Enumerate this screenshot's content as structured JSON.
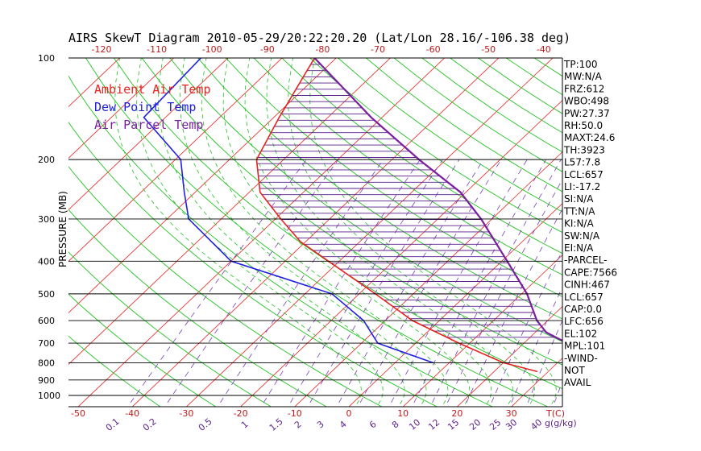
{
  "chart_data": {
    "type": "skewt",
    "title": "AIRS SkewT Diagram 2010-05-29/20:22:20.20 (Lat/Lon 28.16/-106.38 deg)",
    "ylabel": "PRESSURE (MB)",
    "xlabel_right": "T(C)",
    "mixing_ratio_unit": "g(g/kg)",
    "pressure_ticks": [
      100,
      200,
      300,
      400,
      500,
      600,
      700,
      800,
      900,
      1000
    ],
    "bottom_temp_ticks": [
      -50,
      -40,
      -30,
      -20,
      -10,
      0,
      10,
      20,
      30,
      40
    ],
    "top_temp_ticks": [
      -120,
      -110,
      -100,
      -90,
      -80,
      -70,
      -60,
      -50,
      -40
    ],
    "mixing_ratio_labels": [
      "0.1",
      "0.2",
      "0.5",
      "1",
      "1.5",
      "2",
      "3",
      "4",
      "6",
      "8",
      "10",
      "12",
      "15",
      "20",
      "25",
      "30",
      "40"
    ],
    "legend": [
      {
        "label": "Ambient Air Temp",
        "color": "#e8231f"
      },
      {
        "label": "Dew Point Temp",
        "color": "#2020e0"
      },
      {
        "label": "Air Parcel Temp",
        "color": "#7a1fa0"
      }
    ],
    "series": [
      {
        "name": "Ambient Air Temp",
        "color": "#e8231f",
        "points": [
          {
            "p": 100,
            "t": -74
          },
          {
            "p": 150,
            "t": -69
          },
          {
            "p": 200,
            "t": -65
          },
          {
            "p": 250,
            "t": -58
          },
          {
            "p": 300,
            "t": -49
          },
          {
            "p": 350,
            "t": -41
          },
          {
            "p": 400,
            "t": -32
          },
          {
            "p": 500,
            "t": -17
          },
          {
            "p": 600,
            "t": -5
          },
          {
            "p": 700,
            "t": 8
          },
          {
            "p": 800,
            "t": 20
          },
          {
            "p": 850,
            "t": 28
          }
        ]
      },
      {
        "name": "Dew Point Temp",
        "color": "#2020e0",
        "points": [
          {
            "p": 100,
            "t": -95
          },
          {
            "p": 150,
            "t": -94
          },
          {
            "p": 200,
            "t": -79
          },
          {
            "p": 250,
            "t": -72
          },
          {
            "p": 300,
            "t": -66
          },
          {
            "p": 400,
            "t": -50
          },
          {
            "p": 500,
            "t": -25
          },
          {
            "p": 600,
            "t": -14
          },
          {
            "p": 700,
            "t": -7
          },
          {
            "p": 800,
            "t": 7
          }
        ]
      },
      {
        "name": "Air Parcel Temp",
        "color": "#7a1fa0",
        "points": [
          {
            "p": 100,
            "t": -74
          },
          {
            "p": 150,
            "t": -52
          },
          {
            "p": 200,
            "t": -35
          },
          {
            "p": 250,
            "t": -21
          },
          {
            "p": 300,
            "t": -12
          },
          {
            "p": 400,
            "t": 1
          },
          {
            "p": 500,
            "t": 11
          },
          {
            "p": 600,
            "t": 18
          },
          {
            "p": 650,
            "t": 22
          },
          {
            "p": 700,
            "t": 28
          }
        ]
      }
    ]
  },
  "indices": [
    "TP:100",
    "MW:N/A",
    "FRZ:612",
    "WBO:498",
    "PW:27.37",
    "RH:50.0",
    "MAXT:24.6",
    "TH:3923",
    "L57:7.8",
    "LCL:657",
    "LI:-17.2",
    "SI:N/A",
    "TT:N/A",
    "KI:N/A",
    "SW:N/A",
    "EI:N/A",
    "-PARCEL-",
    "CAPE:7566",
    "CINH:467",
    "LCL:657",
    "CAP:0.0",
    "LFC:656",
    "EL:102",
    "MPL:101",
    "-WIND-",
    "NOT",
    "AVAIL"
  ]
}
